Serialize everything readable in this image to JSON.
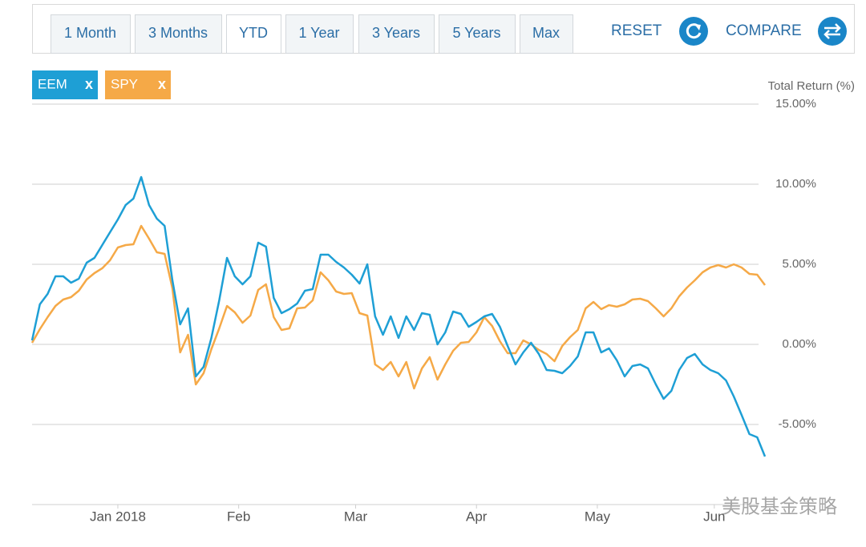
{
  "ranges": [
    "1 Month",
    "3 Months",
    "YTD",
    "1 Year",
    "3 Years",
    "5 Years",
    "Max"
  ],
  "active_range": "YTD",
  "reset_label": "RESET",
  "compare_label": "COMPARE",
  "remove_label": "x",
  "watermark": "美股基金策略",
  "chart_data": {
    "type": "line",
    "y_label": "Total Return (%)",
    "ylim": [
      -10,
      15
    ],
    "yticks": [
      {
        "value": 15,
        "label": "15.00%"
      },
      {
        "value": 10,
        "label": "10.00%"
      },
      {
        "value": 5,
        "label": "5.00%"
      },
      {
        "value": 0,
        "label": "0.00%"
      },
      {
        "value": -5,
        "label": "-5.00%"
      }
    ],
    "grid": true,
    "xlim": [
      -22,
      166
    ],
    "xticks": [
      {
        "value": 0,
        "label": "Jan 2018"
      },
      {
        "value": 31,
        "label": "Feb"
      },
      {
        "value": 61,
        "label": "Mar"
      },
      {
        "value": 92,
        "label": "Apr"
      },
      {
        "value": 123,
        "label": "May"
      },
      {
        "value": 153,
        "label": "Jun"
      }
    ],
    "x": [
      -22,
      -20,
      -18,
      -16,
      -14,
      -12,
      -10,
      -8,
      -6,
      -4,
      -2,
      0,
      2,
      4,
      6,
      8,
      10,
      12,
      14,
      16,
      18,
      20,
      22,
      24,
      26,
      28,
      30,
      32,
      34,
      36,
      38,
      40,
      42,
      44,
      46,
      48,
      50,
      52,
      54,
      56,
      58,
      60,
      62,
      64,
      66,
      68,
      70,
      72,
      74,
      76,
      78,
      80,
      82,
      84,
      86,
      88,
      90,
      92,
      94,
      96,
      98,
      100,
      102,
      104,
      106,
      108,
      110,
      112,
      114,
      116,
      118,
      120,
      122,
      124,
      126,
      128,
      130,
      132,
      134,
      136,
      138,
      140,
      142,
      144,
      146,
      148,
      150,
      152,
      154,
      156,
      158,
      160,
      162,
      164,
      166
    ],
    "series": [
      {
        "name": "EEM",
        "color": "#1e9fd5",
        "values": [
          0.25,
          2.5,
          3.15,
          4.25,
          4.25,
          3.85,
          4.1,
          5.1,
          5.4,
          6.2,
          7.0,
          7.8,
          8.7,
          9.1,
          10.45,
          8.7,
          7.85,
          7.4,
          4.0,
          1.25,
          2.25,
          -2.0,
          -1.4,
          0.4,
          2.75,
          5.4,
          4.25,
          3.75,
          4.25,
          6.35,
          6.1,
          2.9,
          1.95,
          2.2,
          2.55,
          3.35,
          3.45,
          5.6,
          5.6,
          5.15,
          4.8,
          4.35,
          3.8,
          5.0,
          1.75,
          0.6,
          1.75,
          0.4,
          1.75,
          0.9,
          1.95,
          1.85,
          0,
          0.75,
          2.05,
          1.9,
          1.1,
          1.4,
          1.75,
          1.9,
          1.1,
          -0.1,
          -1.25,
          -0.5,
          0.1,
          -0.6,
          -1.6,
          -1.65,
          -1.8,
          -1.35,
          -0.75,
          0.75,
          0.75,
          -0.5,
          -0.25,
          -1.0,
          -2.0,
          -1.35,
          -1.25,
          -1.5,
          -2.5,
          -3.4,
          -2.9,
          -1.6,
          -0.85,
          -0.6,
          -1.25,
          -1.6,
          -1.8,
          -2.25,
          -3.25,
          -4.4,
          -5.6,
          -5.8,
          -7.0
        ]
      },
      {
        "name": "SPY",
        "color": "#f5a947",
        "values": [
          0.1,
          0.95,
          1.7,
          2.4,
          2.8,
          2.95,
          3.35,
          4.05,
          4.45,
          4.75,
          5.25,
          6.05,
          6.2,
          6.25,
          7.4,
          6.6,
          5.75,
          5.65,
          3.5,
          -0.5,
          0.6,
          -2.5,
          -1.8,
          -0.3,
          1.0,
          2.4,
          2.0,
          1.35,
          1.8,
          3.4,
          3.75,
          1.7,
          0.9,
          1.0,
          2.25,
          2.3,
          2.75,
          4.5,
          4.0,
          3.3,
          3.15,
          3.2,
          1.95,
          1.8,
          -1.25,
          -1.6,
          -1.1,
          -2.0,
          -1.1,
          -2.75,
          -1.5,
          -0.8,
          -2.2,
          -1.25,
          -0.4,
          0.1,
          0.15,
          0.75,
          1.7,
          1.15,
          0.2,
          -0.55,
          -0.55,
          0.25,
          0,
          -0.35,
          -0.6,
          -1.05,
          -0.1,
          0.45,
          0.9,
          2.25,
          2.65,
          2.2,
          2.45,
          2.35,
          2.5,
          2.8,
          2.85,
          2.7,
          2.25,
          1.75,
          2.25,
          3.0,
          3.55,
          4.0,
          4.5,
          4.8,
          4.95,
          4.8,
          5.0,
          4.8,
          4.4,
          4.35,
          3.7
        ]
      }
    ]
  }
}
